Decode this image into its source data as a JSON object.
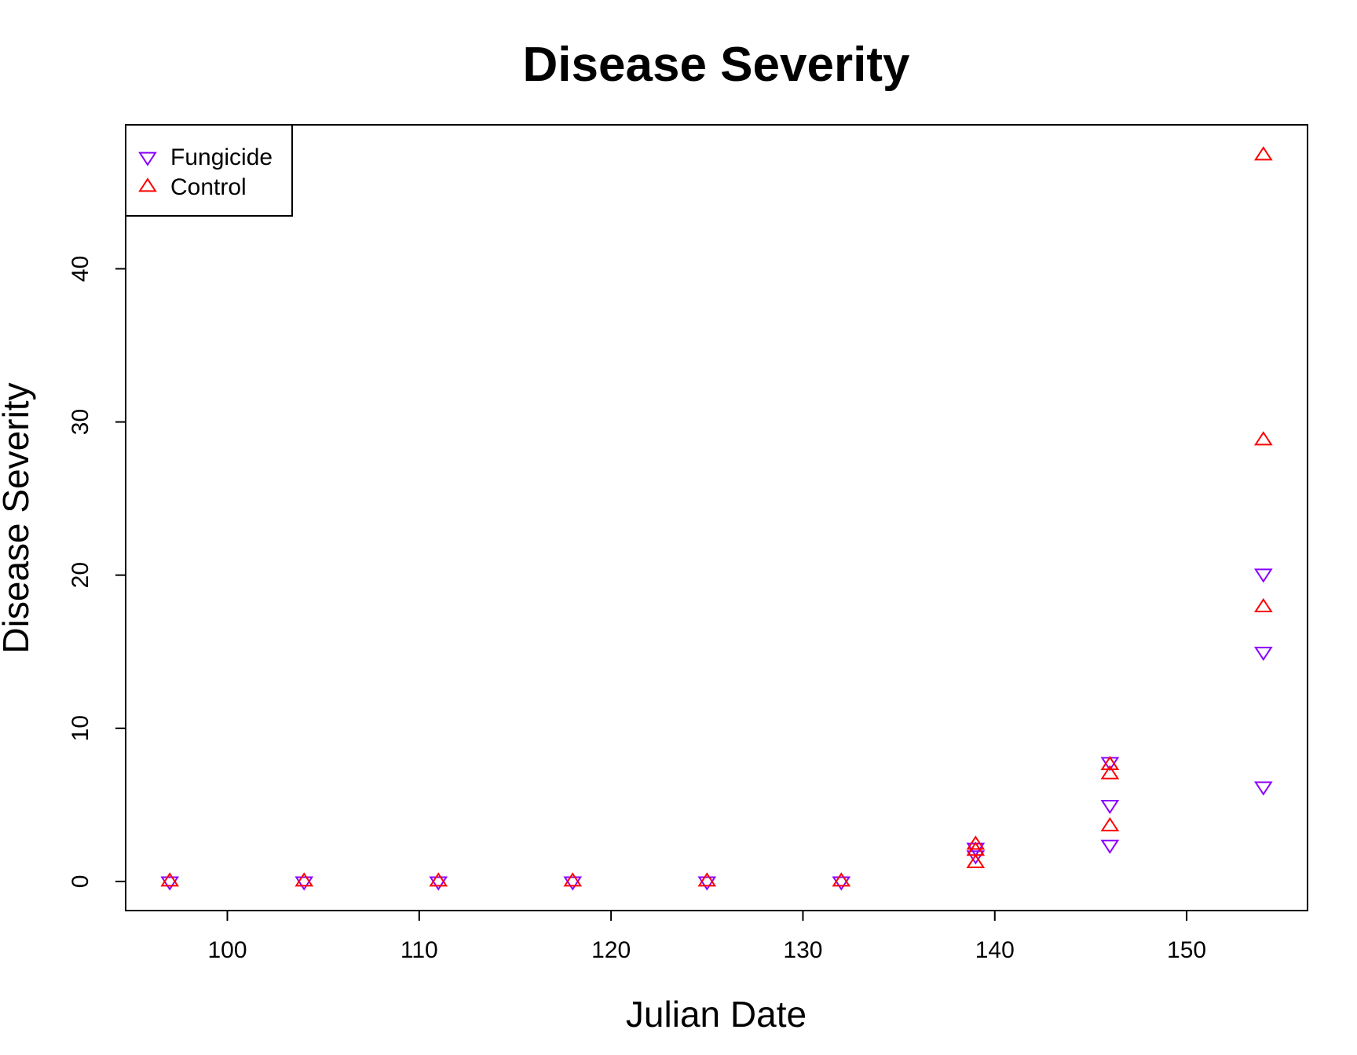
{
  "chart_data": {
    "type": "scatter",
    "title": "Disease Severity",
    "xlabel": "Julian Date",
    "ylabel": "Disease Severity",
    "xlim": [
      94.7,
      156.3
    ],
    "ylim": [
      -1.9,
      49.4
    ],
    "xticks": [
      100,
      110,
      120,
      130,
      140,
      150
    ],
    "yticks": [
      0,
      10,
      20,
      30,
      40
    ],
    "xtick_labels": [
      "100",
      "110",
      "120",
      "130",
      "140",
      "150"
    ],
    "ytick_labels": [
      "0",
      "10",
      "20",
      "30",
      "40"
    ],
    "grid": false,
    "legend_position": "top-left",
    "series": [
      {
        "name": "Fungicide",
        "color": "#8B00FF",
        "marker": "triangle-down",
        "points": [
          [
            97,
            0
          ],
          [
            104,
            0
          ],
          [
            111,
            0
          ],
          [
            118,
            0
          ],
          [
            125,
            0
          ],
          [
            132,
            0
          ],
          [
            139,
            1.7
          ],
          [
            139,
            2.2
          ],
          [
            146,
            2.4
          ],
          [
            146,
            5.0
          ],
          [
            146,
            7.8
          ],
          [
            154,
            6.2
          ],
          [
            154,
            15.0
          ],
          [
            154,
            20.1
          ]
        ]
      },
      {
        "name": "Control",
        "color": "#FF0000",
        "marker": "triangle-up",
        "points": [
          [
            97,
            0
          ],
          [
            104,
            0
          ],
          [
            111,
            0
          ],
          [
            118,
            0
          ],
          [
            125,
            0
          ],
          [
            132,
            0
          ],
          [
            139,
            1.2
          ],
          [
            139,
            2.0
          ],
          [
            139,
            2.4
          ],
          [
            146,
            3.6
          ],
          [
            146,
            7.0
          ],
          [
            146,
            7.6
          ],
          [
            154,
            17.9
          ],
          [
            154,
            28.8
          ],
          [
            154,
            47.4
          ]
        ]
      }
    ]
  }
}
